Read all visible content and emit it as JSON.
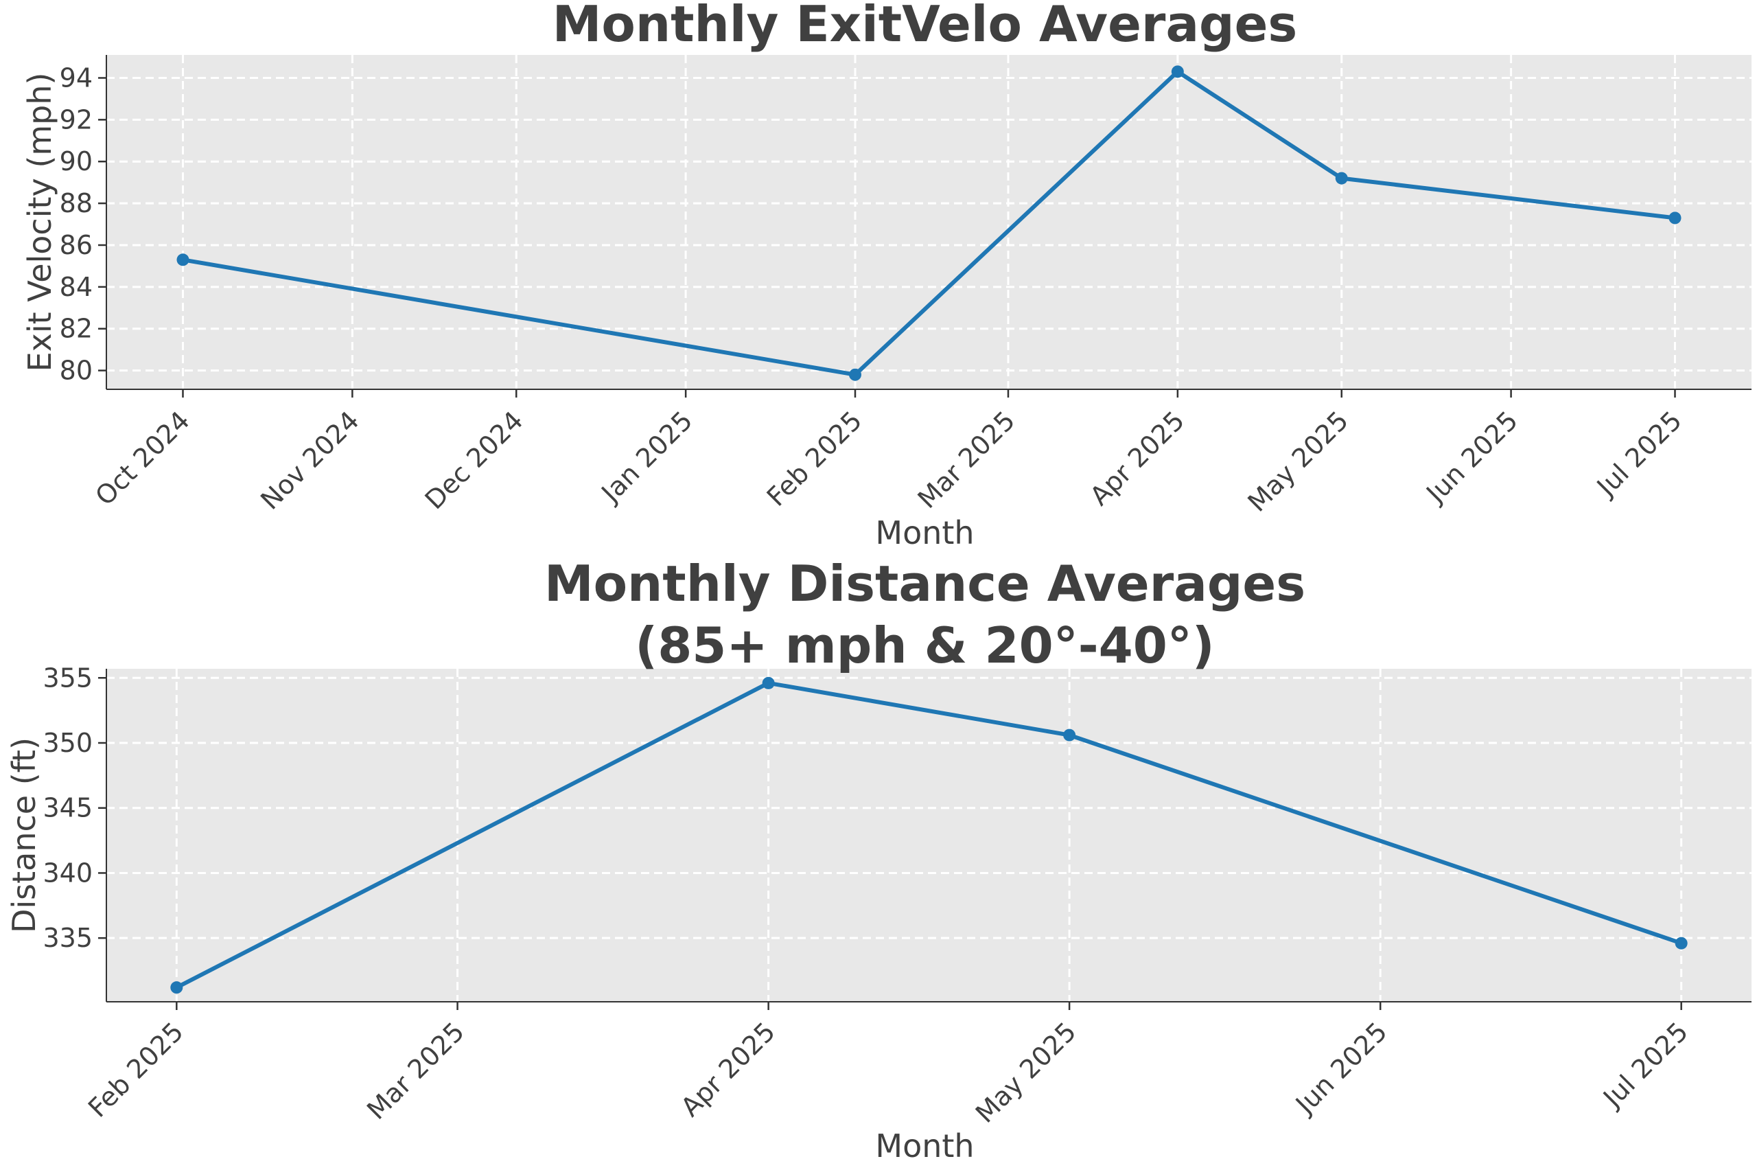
{
  "chart_data": [
    {
      "type": "line",
      "title": "Monthly ExitVelo Averages",
      "xlabel": "Month",
      "ylabel": "Exit Velocity (mph)",
      "grid": true,
      "legend": "none",
      "color": "#1f77b4",
      "x_ticks": [
        "Oct 2024",
        "Nov 2024",
        "Dec 2024",
        "Jan 2025",
        "Feb 2025",
        "Mar 2025",
        "Apr 2025",
        "May 2025",
        "Jun 2025",
        "Jul 2025"
      ],
      "y_ticks": [
        80,
        82,
        84,
        86,
        88,
        90,
        92,
        94
      ],
      "xlim": [
        "2024-09-17",
        "2025-07-15"
      ],
      "ylim": [
        79.1,
        95.1
      ],
      "series": [
        {
          "x": [
            "2024-10-01",
            "2025-02-01",
            "2025-04-01",
            "2025-05-01",
            "2025-07-01"
          ],
          "y": [
            85.3,
            79.8,
            94.3,
            89.2,
            87.3
          ]
        }
      ]
    },
    {
      "type": "line",
      "title": "Monthly Distance Averages\n(85+ mph & 20°-40°)",
      "xlabel": "Month",
      "ylabel": "Distance (ft)",
      "grid": true,
      "legend": "none",
      "color": "#1f77b4",
      "x_ticks": [
        "Feb 2025",
        "Mar 2025",
        "Apr 2025",
        "May 2025",
        "Jun 2025",
        "Jul 2025"
      ],
      "y_ticks": [
        335,
        340,
        345,
        350,
        355
      ],
      "xlim": [
        "2025-01-25",
        "2025-07-08"
      ],
      "ylim": [
        330.1,
        355.7
      ],
      "series": [
        {
          "x": [
            "2025-02-01",
            "2025-04-01",
            "2025-05-01",
            "2025-07-01"
          ],
          "y": [
            331.2,
            354.6,
            350.6,
            334.6
          ]
        }
      ]
    }
  ]
}
